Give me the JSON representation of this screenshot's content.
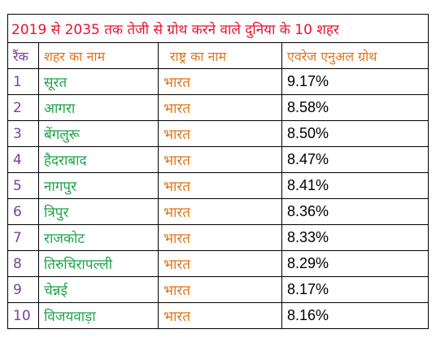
{
  "title": "2019 से 2035 तक तेजी से ग्रोथ करने वाले दुनिया के 10 शहर",
  "headers": {
    "rank": "रैंक",
    "city": "शहर का नाम",
    "country": "राष्ट्र का नाम",
    "growth": "एवरेज एनुअल ग्रोथ"
  },
  "rows": [
    {
      "rank": "1",
      "city": "सूरत",
      "country": "भारत",
      "growth": "9.17%"
    },
    {
      "rank": "2",
      "city": "आगरा",
      "country": "भारत",
      "growth": "8.58%"
    },
    {
      "rank": "3",
      "city": "बेंगलुरू",
      "country": "भारत",
      "growth": "8.50%"
    },
    {
      "rank": "4",
      "city": "हैदराबाद",
      "country": "भारत",
      "growth": "8.47%"
    },
    {
      "rank": "5",
      "city": "नागपुर",
      "country": "भारत",
      "growth": "8.41%"
    },
    {
      "rank": "6",
      "city": "त्रिपुर",
      "country": "भारत",
      "growth": "8.36%"
    },
    {
      "rank": "7",
      "city": "राजकोट",
      "country": "भारत",
      "growth": "8.33%"
    },
    {
      "rank": "8",
      "city": "तिरुचिरापल्ली",
      "country": "भारत",
      "growth": "8.29%"
    },
    {
      "rank": "9",
      "city": "चेन्नई",
      "country": "भारत",
      "growth": "8.17%"
    },
    {
      "rank": "10",
      "city": "विजयवाड़ा",
      "country": "भारत",
      "growth": "8.16%"
    }
  ],
  "colors": {
    "title": "#e8112d",
    "rank": "#7a3fa0",
    "city": "#1fa447",
    "country": "#e0751b",
    "growth": "#000000",
    "border": "#000000"
  }
}
